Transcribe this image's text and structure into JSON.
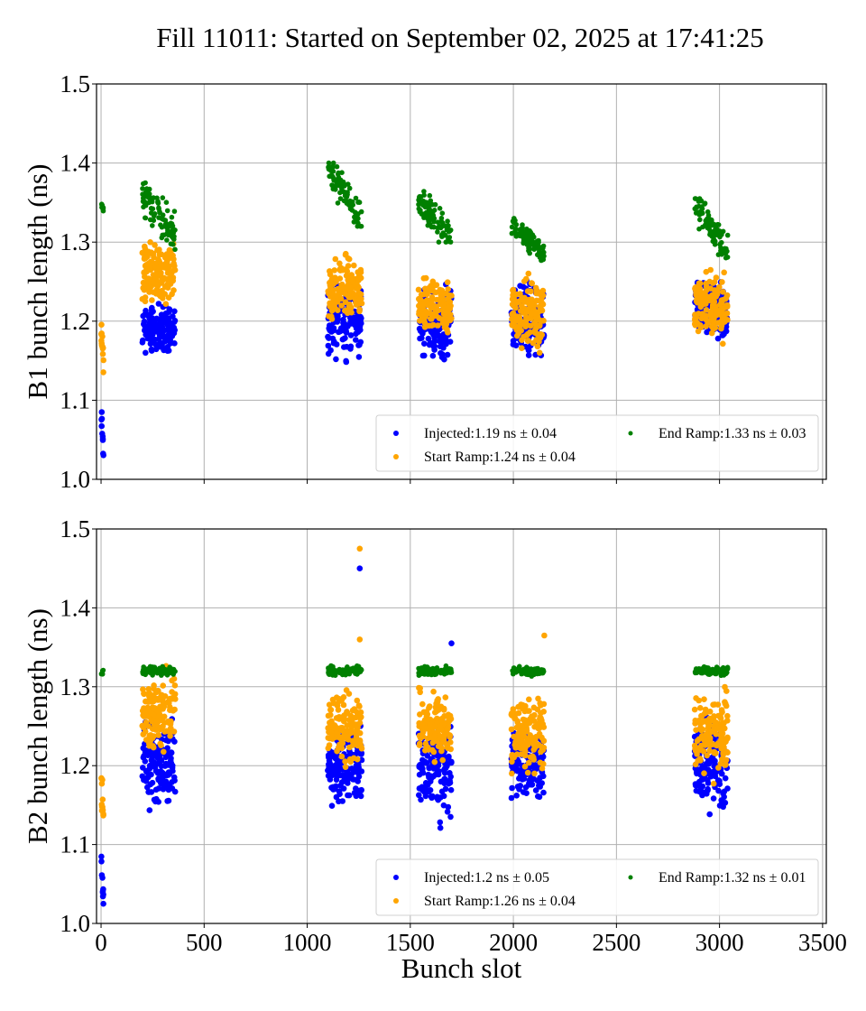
{
  "figure": {
    "title": "Fill 11011: Started on September 02, 2025 at 17:41:25"
  },
  "chart_data": [
    {
      "type": "scatter",
      "panel": "top",
      "title": "",
      "xlabel": "",
      "ylabel": "B1 bunch length (ns)",
      "xlim": [
        -22,
        3518
      ],
      "ylim": [
        1.0,
        1.5
      ],
      "xticks": [
        0,
        500,
        1000,
        1500,
        2000,
        2500,
        3000,
        3500
      ],
      "xtick_labels_visible": false,
      "yticks": [
        1.0,
        1.1,
        1.2,
        1.3,
        1.4,
        1.5
      ],
      "ytick_labels": [
        "1.0",
        "1.1",
        "1.2",
        "1.3",
        "1.4",
        "1.5"
      ],
      "grid": true,
      "legend": {
        "placement": "lower-right",
        "columns": 2
      },
      "series": [
        {
          "name": "Injected",
          "legend_label": "Injected:1.19 ns ± 0.04",
          "color": "#0000ff",
          "groups": [
            {
              "x_range": [
                1,
                12
              ],
              "y_range": [
                1.025,
                1.085
              ],
              "y_start": 1.08,
              "y_end": 1.03,
              "n": 10
            },
            {
              "x_range": [
                200,
                360
              ],
              "y_range": [
                1.14,
                1.24
              ],
              "y_start": 1.19,
              "y_end": 1.19,
              "n": 140
            },
            {
              "x_range": [
                1100,
                1265
              ],
              "y_range": [
                1.125,
                1.275
              ],
              "y_start": 1.2,
              "y_end": 1.2,
              "n": 140
            },
            {
              "x_range": [
                1540,
                1700
              ],
              "y_range": [
                1.115,
                1.265
              ],
              "y_start": 1.2,
              "y_end": 1.2,
              "n": 140
            },
            {
              "x_range": [
                1990,
                2150
              ],
              "y_range": [
                1.12,
                1.27
              ],
              "y_start": 1.2,
              "y_end": 1.2,
              "n": 140
            },
            {
              "x_range": [
                2880,
                3040
              ],
              "y_range": [
                1.145,
                1.275
              ],
              "y_start": 1.21,
              "y_end": 1.21,
              "n": 140
            }
          ]
        },
        {
          "name": "Start Ramp",
          "legend_label": "Start Ramp:1.24 ns ± 0.04",
          "color": "#ffa500",
          "groups": [
            {
              "x_range": [
                1,
                12
              ],
              "y_range": [
                1.1,
                1.21
              ],
              "y_start": 1.2,
              "y_end": 1.14,
              "n": 14
            },
            {
              "x_range": [
                200,
                360
              ],
              "y_range": [
                1.19,
                1.33
              ],
              "y_start": 1.26,
              "y_end": 1.26,
              "n": 140
            },
            {
              "x_range": [
                1100,
                1265
              ],
              "y_range": [
                1.19,
                1.32
              ],
              "y_start": 1.24,
              "y_end": 1.24,
              "n": 140
            },
            {
              "x_range": [
                1540,
                1700
              ],
              "y_range": [
                1.17,
                1.29
              ],
              "y_start": 1.22,
              "y_end": 1.22,
              "n": 140
            },
            {
              "x_range": [
                1990,
                2150
              ],
              "y_range": [
                1.16,
                1.33
              ],
              "y_start": 1.21,
              "y_end": 1.21,
              "n": 140
            },
            {
              "x_range": [
                2880,
                3040
              ],
              "y_range": [
                1.16,
                1.3
              ],
              "y_start": 1.22,
              "y_end": 1.22,
              "n": 140
            }
          ]
        },
        {
          "name": "End Ramp",
          "legend_label": "End Ramp:1.33 ns ± 0.03",
          "color": "#008000",
          "groups": [
            {
              "x_range": [
                1,
                12
              ],
              "y_range": [
                1.33,
                1.36
              ],
              "y_start": 1.345,
              "y_end": 1.34,
              "n": 8
            },
            {
              "x_range": [
                200,
                360
              ],
              "y_range": [
                1.29,
                1.375
              ],
              "y_start": 1.36,
              "y_end": 1.31,
              "n": 90
            },
            {
              "x_range": [
                1100,
                1265
              ],
              "y_range": [
                1.32,
                1.4
              ],
              "y_start": 1.39,
              "y_end": 1.33,
              "n": 90
            },
            {
              "x_range": [
                1540,
                1700
              ],
              "y_range": [
                1.3,
                1.37
              ],
              "y_start": 1.355,
              "y_end": 1.305,
              "n": 90
            },
            {
              "x_range": [
                1990,
                2150
              ],
              "y_range": [
                1.275,
                1.33
              ],
              "y_start": 1.325,
              "y_end": 1.285,
              "n": 90
            },
            {
              "x_range": [
                2880,
                3040
              ],
              "y_range": [
                1.28,
                1.355
              ],
              "y_start": 1.345,
              "y_end": 1.29,
              "n": 90
            }
          ]
        }
      ]
    },
    {
      "type": "scatter",
      "panel": "bottom",
      "title": "",
      "xlabel": "Bunch slot",
      "ylabel": "B2 bunch length (ns)",
      "xlim": [
        -22,
        3518
      ],
      "ylim": [
        1.0,
        1.5
      ],
      "xticks": [
        0,
        500,
        1000,
        1500,
        2000,
        2500,
        3000,
        3500
      ],
      "xtick_labels": [
        "0",
        "500",
        "1000",
        "1500",
        "2000",
        "2500",
        "3000",
        "3500"
      ],
      "yticks": [
        1.0,
        1.1,
        1.2,
        1.3,
        1.4,
        1.5
      ],
      "ytick_labels": [
        "1.0",
        "1.1",
        "1.2",
        "1.3",
        "1.4",
        "1.5"
      ],
      "grid": true,
      "legend": {
        "placement": "lower-right",
        "columns": 2
      },
      "series": [
        {
          "name": "Injected",
          "legend_label": "Injected:1.2 ns ± 0.05",
          "color": "#0000ff",
          "groups": [
            {
              "x_range": [
                1,
                12
              ],
              "y_range": [
                1.025,
                1.085
              ],
              "y_start": 1.08,
              "y_end": 1.03,
              "n": 10
            },
            {
              "x_range": [
                200,
                360
              ],
              "y_range": [
                1.14,
                1.32
              ],
              "y_start": 1.2,
              "y_end": 1.2,
              "n": 140
            },
            {
              "x_range": [
                1100,
                1265
              ],
              "y_range": [
                1.14,
                1.3
              ],
              "y_start": 1.2,
              "y_end": 1.2,
              "n": 140
            },
            {
              "x_range": [
                1540,
                1700
              ],
              "y_range": [
                1.1,
                1.33
              ],
              "y_start": 1.2,
              "y_end": 1.2,
              "n": 140
            },
            {
              "x_range": [
                1990,
                2150
              ],
              "y_range": [
                1.15,
                1.31
              ],
              "y_start": 1.2,
              "y_end": 1.2,
              "n": 140
            },
            {
              "x_range": [
                2880,
                3040
              ],
              "y_range": [
                1.12,
                1.31
              ],
              "y_start": 1.2,
              "y_end": 1.2,
              "n": 140
            }
          ],
          "outliers": [
            {
              "x": 1255,
              "y": 1.45
            },
            {
              "x": 1700,
              "y": 1.355
            }
          ]
        },
        {
          "name": "Start Ramp",
          "legend_label": "Start Ramp:1.26 ns ± 0.04",
          "color": "#ffa500",
          "groups": [
            {
              "x_range": [
                1,
                12
              ],
              "y_range": [
                1.13,
                1.21
              ],
              "y_start": 1.17,
              "y_end": 1.14,
              "n": 12
            },
            {
              "x_range": [
                200,
                360
              ],
              "y_range": [
                1.18,
                1.35
              ],
              "y_start": 1.26,
              "y_end": 1.27,
              "n": 140
            },
            {
              "x_range": [
                1100,
                1265
              ],
              "y_range": [
                1.19,
                1.34
              ],
              "y_start": 1.25,
              "y_end": 1.25,
              "n": 140
            },
            {
              "x_range": [
                1540,
                1700
              ],
              "y_range": [
                1.19,
                1.33
              ],
              "y_start": 1.25,
              "y_end": 1.25,
              "n": 140
            },
            {
              "x_range": [
                1990,
                2150
              ],
              "y_range": [
                1.19,
                1.34
              ],
              "y_start": 1.24,
              "y_end": 1.24,
              "n": 140
            },
            {
              "x_range": [
                2880,
                3040
              ],
              "y_range": [
                1.17,
                1.34
              ],
              "y_start": 1.24,
              "y_end": 1.24,
              "n": 140
            }
          ],
          "outliers": [
            {
              "x": 1255,
              "y": 1.475
            },
            {
              "x": 1255,
              "y": 1.36
            },
            {
              "x": 2150,
              "y": 1.365
            }
          ]
        },
        {
          "name": "End Ramp",
          "legend_label": "End Ramp:1.32 ns ± 0.01",
          "color": "#008000",
          "groups": [
            {
              "x_range": [
                1,
                12
              ],
              "y_range": [
                1.31,
                1.325
              ],
              "y_start": 1.318,
              "y_end": 1.318,
              "n": 6
            },
            {
              "x_range": [
                200,
                360
              ],
              "y_range": [
                1.31,
                1.33
              ],
              "y_start": 1.32,
              "y_end": 1.32,
              "n": 90
            },
            {
              "x_range": [
                1100,
                1265
              ],
              "y_range": [
                1.31,
                1.33
              ],
              "y_start": 1.32,
              "y_end": 1.32,
              "n": 90
            },
            {
              "x_range": [
                1540,
                1700
              ],
              "y_range": [
                1.31,
                1.33
              ],
              "y_start": 1.32,
              "y_end": 1.32,
              "n": 90
            },
            {
              "x_range": [
                1990,
                2150
              ],
              "y_range": [
                1.31,
                1.33
              ],
              "y_start": 1.32,
              "y_end": 1.32,
              "n": 90
            },
            {
              "x_range": [
                2880,
                3040
              ],
              "y_range": [
                1.31,
                1.33
              ],
              "y_start": 1.32,
              "y_end": 1.32,
              "n": 90
            }
          ]
        }
      ]
    }
  ]
}
